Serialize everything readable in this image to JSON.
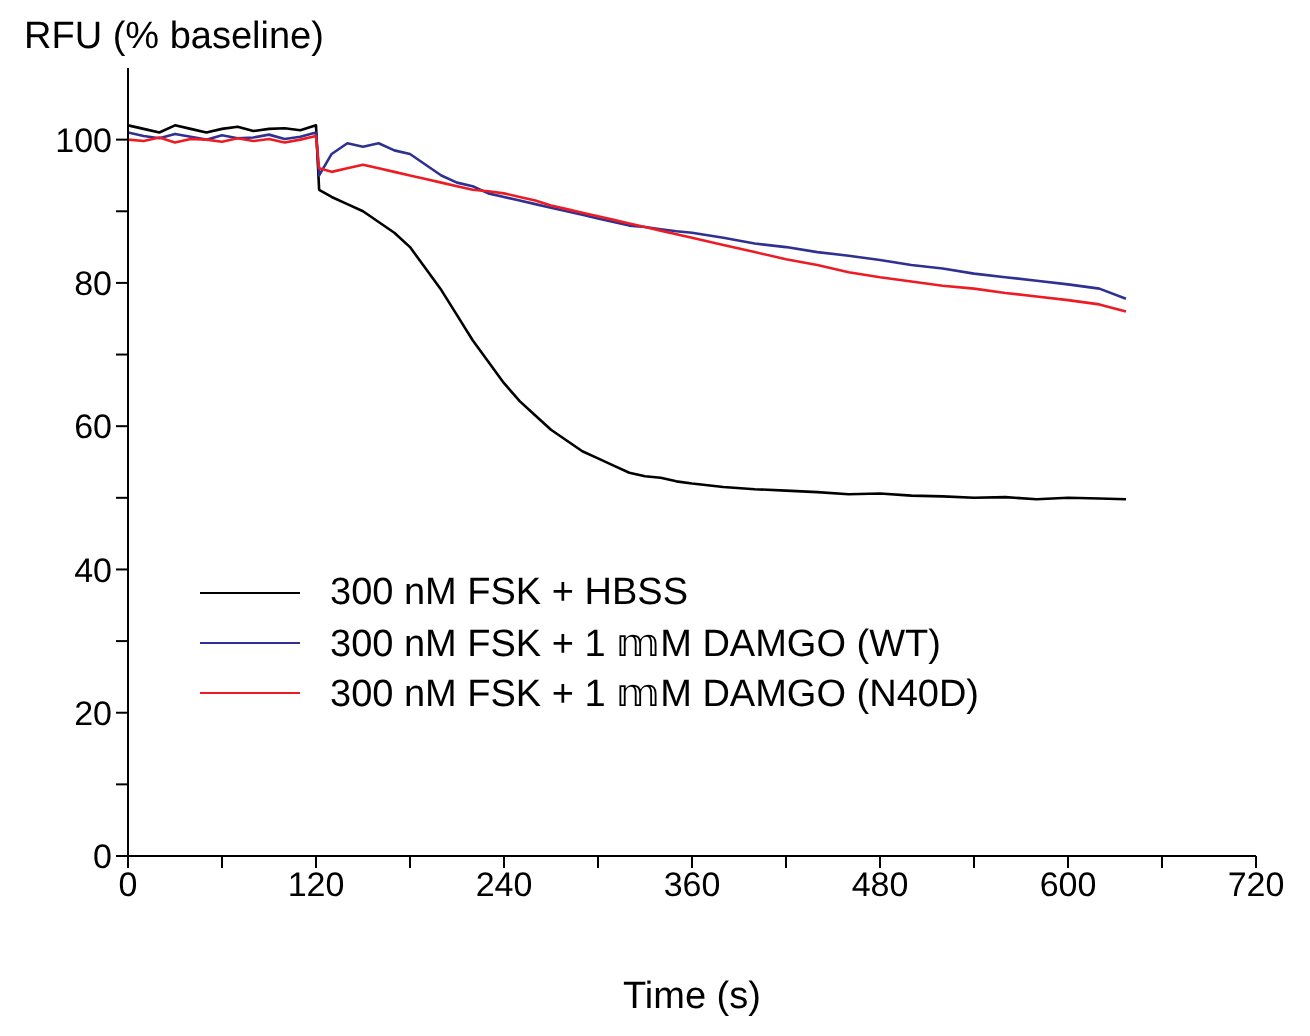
{
  "chart_data": {
    "type": "line",
    "xlabel": "Time (s)",
    "ylabel": "RFU (% baseline)",
    "xlim": [
      0,
      720
    ],
    "ylim": [
      0,
      110
    ],
    "xticks": [
      0,
      {
        "value": 60,
        "label": null
      },
      120,
      {
        "value": 180,
        "label": null
      },
      240,
      {
        "value": 300,
        "label": null
      },
      360,
      {
        "value": 420,
        "label": null
      },
      480,
      {
        "value": 540,
        "label": null
      },
      600,
      {
        "value": 660,
        "label": null
      },
      720
    ],
    "yticks": [
      0,
      {
        "value": 10,
        "label": null
      },
      20,
      {
        "value": 30,
        "label": null
      },
      40,
      {
        "value": 50,
        "label": null
      },
      60,
      {
        "value": 70,
        "label": null
      },
      80,
      {
        "value": 90,
        "label": null
      },
      100
    ],
    "x": [
      0,
      10,
      20,
      30,
      40,
      50,
      60,
      70,
      80,
      90,
      100,
      110,
      120,
      122,
      130,
      140,
      150,
      160,
      170,
      180,
      190,
      200,
      210,
      220,
      230,
      240,
      250,
      260,
      270,
      280,
      290,
      300,
      310,
      320,
      330,
      340,
      350,
      360,
      380,
      400,
      420,
      440,
      460,
      480,
      500,
      520,
      540,
      560,
      580,
      600,
      620,
      637
    ],
    "legend": "bottom left",
    "marker": "none",
    "line_style": "solid",
    "series": [
      {
        "name": "300 nM FSK + HBSS",
        "color": "#000000",
        "values": [
          102,
          101.5,
          101,
          102,
          101.5,
          101,
          101.5,
          101.8,
          101.2,
          101.5,
          101.6,
          101.3,
          102,
          93,
          92,
          91,
          90,
          88.5,
          87,
          85,
          82,
          79,
          75.5,
          72,
          69,
          66,
          63.5,
          61.5,
          59.5,
          58,
          56.5,
          55.5,
          54.5,
          53.5,
          53,
          52.8,
          52.3,
          52,
          51.5,
          51.2,
          51,
          50.8,
          50.5,
          50.6,
          50.3,
          50.2,
          50,
          50.1,
          49.8,
          50,
          49.9,
          49.8
        ]
      },
      {
        "name": "300 nM FSK + 1 𝕞M DAMGO (WT)",
        "color": "#2e3192",
        "values": [
          101,
          100.5,
          100.2,
          100.8,
          100.4,
          100,
          100.6,
          100.2,
          100.3,
          100.7,
          100.1,
          100.4,
          101,
          95,
          98,
          99.5,
          99,
          99.5,
          98.5,
          98,
          96.5,
          95,
          94,
          93.5,
          92.5,
          92,
          91.5,
          91,
          90.5,
          90,
          89.5,
          89,
          88.5,
          88,
          87.8,
          87.5,
          87.2,
          87,
          86.3,
          85.5,
          85,
          84.3,
          83.8,
          83.2,
          82.5,
          82,
          81.3,
          80.8,
          80.3,
          79.8,
          79.2,
          77.8
        ]
      },
      {
        "name": "300 nM FSK + 1 𝕞M DAMGO (N40D)",
        "color": "#ed1c24",
        "values": [
          100,
          99.8,
          100.3,
          99.6,
          100.1,
          100,
          99.7,
          100.2,
          99.8,
          100.1,
          99.6,
          100,
          100.5,
          96,
          95.5,
          96,
          96.5,
          96,
          95.5,
          95,
          94.5,
          94,
          93.5,
          93,
          92.8,
          92.5,
          92,
          91.5,
          90.8,
          90.3,
          89.8,
          89.3,
          88.8,
          88.3,
          87.8,
          87.3,
          86.8,
          86.3,
          85.3,
          84.3,
          83.3,
          82.5,
          81.5,
          80.8,
          80.2,
          79.6,
          79.2,
          78.6,
          78.1,
          77.6,
          77,
          76
        ]
      }
    ]
  }
}
